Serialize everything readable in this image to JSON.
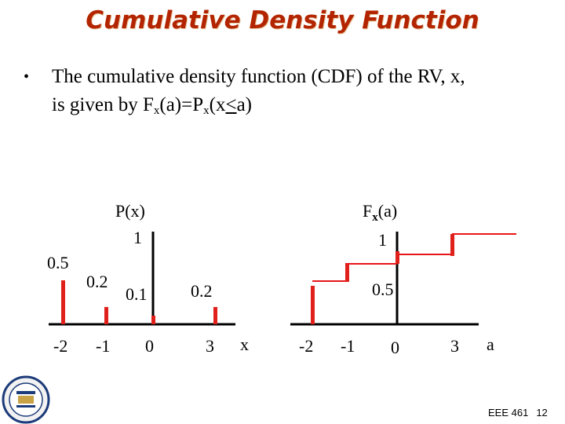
{
  "title": "Cumulative Density Function",
  "bullet": {
    "line1": "The cumulative density function (CDF) of the RV, x,",
    "line2_prefix": "is given by F",
    "sub_x1": "x",
    "paren_a1": "(a)=P",
    "sub_x2": "x",
    "expr_open": "(x",
    "leq": "<",
    "expr_close": "a)"
  },
  "pmf": {
    "ylabel": "P(x)",
    "one": "1",
    "xlabel": "x",
    "prob_labels": [
      "0.5",
      "0.2",
      "0.1",
      "0.2"
    ],
    "ticks": [
      "-2",
      "-1",
      "0",
      "3"
    ],
    "x_values": [
      -2,
      -1,
      0,
      3
    ],
    "probabilities": [
      0.5,
      0.2,
      0.1,
      0.2
    ]
  },
  "cdf": {
    "ylabel_main": "F",
    "ylabel_sub": "x",
    "ylabel_tail": "(a)",
    "one": "1",
    "xlabel": "a",
    "mid_label": "0.5",
    "ticks": [
      "-2",
      "-1",
      "0",
      "3"
    ],
    "steps": [
      {
        "from": -2,
        "value": 0.5
      },
      {
        "from": -1,
        "value": 0.7
      },
      {
        "from": 0,
        "value": 0.8
      },
      {
        "from": 3,
        "value": 1.0
      }
    ]
  },
  "colors": {
    "title": "#b32400",
    "stem": "#e0201a",
    "step_line": "#e8161a",
    "axis": "#000000"
  },
  "footer": {
    "course": "EEE 461",
    "page": "12"
  },
  "logo_icon": "university-seal-icon"
}
